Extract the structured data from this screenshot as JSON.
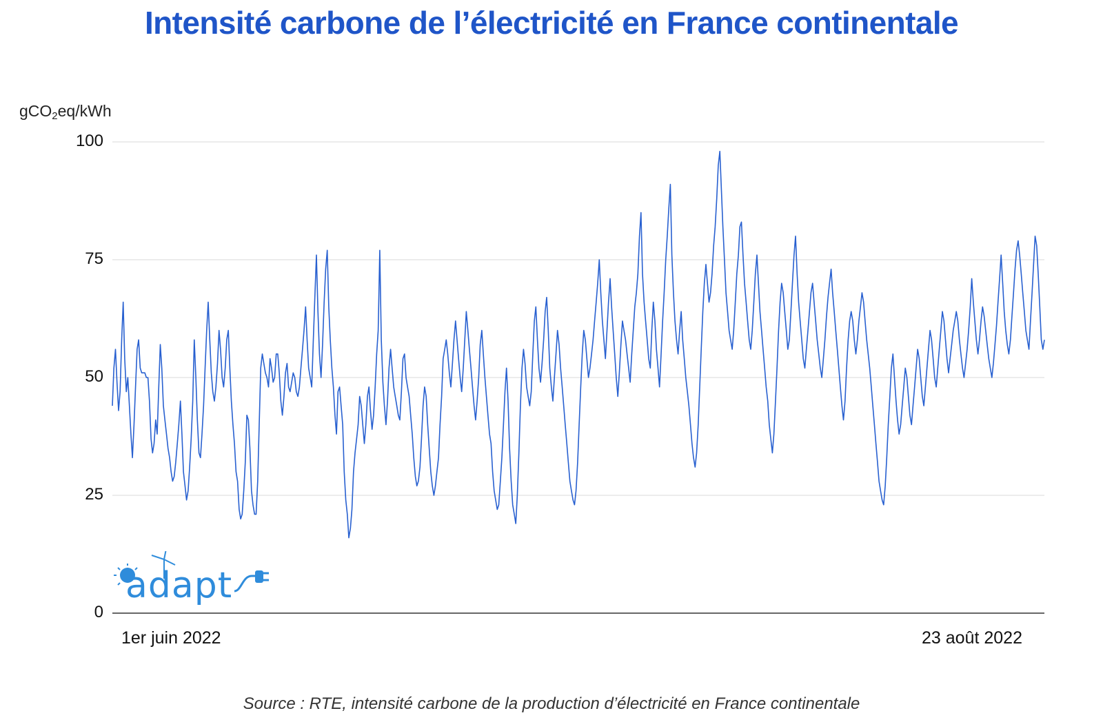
{
  "title_text": "Intensité carbone de l’électricité en France continentale",
  "unit": {
    "main": "gCO",
    "sub": "2",
    "tail": "eq/kWh"
  },
  "source": "Source : RTE, intensité carbone de la production d’électricité en France continentale",
  "logo": {
    "text": "adapt",
    "icons": [
      "sun-icon",
      "wind-turbine-icon",
      "plug-icon"
    ]
  },
  "colors": {
    "title": "#1f55c8",
    "line": "#2860d0",
    "grid": "#d9d9d9",
    "axis": "#333333",
    "logo": "#2f8cdb"
  },
  "chart_data": {
    "type": "line",
    "title": "Intensité carbone de l’électricité en France continentale",
    "ylabel": "gCO2eq/kWh",
    "xlabel": "",
    "ylim": [
      0,
      100
    ],
    "yticks": [
      0,
      25,
      50,
      75,
      100
    ],
    "xticks": [
      "1er juin 2022",
      "23 août 2022"
    ],
    "x_start": "2022-06-01",
    "x_end": "2022-08-23",
    "grid": true,
    "series": [
      {
        "values": [
          44,
          52,
          56,
          49,
          43,
          47,
          58,
          66,
          54,
          47,
          50,
          44,
          38,
          33,
          40,
          48,
          56,
          58,
          52,
          51,
          51,
          51,
          50,
          50,
          45,
          37,
          34,
          36,
          41,
          38,
          48,
          57,
          52,
          44,
          41,
          38,
          35,
          33,
          30,
          28,
          29,
          32,
          36,
          40,
          45,
          38,
          30,
          27,
          24,
          26,
          31,
          37,
          45,
          58,
          50,
          41,
          34,
          33,
          38,
          44,
          52,
          60,
          66,
          58,
          51,
          47,
          45,
          48,
          53,
          60,
          56,
          50,
          48,
          52,
          58,
          60,
          52,
          45,
          40,
          36,
          30,
          28,
          22,
          20,
          21,
          26,
          32,
          42,
          41,
          35,
          26,
          23,
          21,
          21,
          28,
          40,
          52,
          55,
          53,
          51,
          50,
          48,
          54,
          52,
          49,
          50,
          55,
          55,
          51,
          45,
          42,
          46,
          51,
          53,
          48,
          47,
          49,
          51,
          50,
          47,
          46,
          48,
          52,
          56,
          60,
          65,
          58,
          52,
          50,
          48,
          58,
          67,
          76,
          64,
          55,
          50,
          57,
          66,
          73,
          77,
          65,
          58,
          52,
          48,
          42,
          38,
          47,
          48,
          44,
          40,
          30,
          24,
          21,
          16,
          18,
          22,
          30,
          34,
          37,
          40,
          46,
          44,
          40,
          36,
          40,
          46,
          48,
          43,
          39,
          42,
          48,
          55,
          60,
          77,
          58,
          49,
          44,
          40,
          45,
          52,
          56,
          52,
          48,
          46,
          44,
          42,
          41,
          47,
          54,
          55,
          50,
          48,
          46,
          42,
          38,
          33,
          29,
          27,
          28,
          31,
          37,
          44,
          48,
          46,
          40,
          35,
          30,
          27,
          25,
          27,
          30,
          33,
          40,
          46,
          54,
          56,
          58,
          55,
          51,
          48,
          53,
          58,
          62,
          58,
          54,
          50,
          47,
          52,
          58,
          64,
          60,
          56,
          52,
          48,
          44,
          41,
          45,
          50,
          57,
          60,
          55,
          50,
          46,
          42,
          38,
          36,
          30,
          26,
          24,
          22,
          23,
          28,
          33,
          40,
          47,
          52,
          45,
          35,
          28,
          23,
          21,
          19,
          25,
          34,
          44,
          52,
          56,
          53,
          48,
          46,
          44,
          47,
          55,
          62,
          65,
          58,
          52,
          49,
          53,
          58,
          64,
          67,
          60,
          52,
          48,
          45,
          50,
          55,
          60,
          57,
          52,
          48,
          44,
          40,
          36,
          32,
          28,
          26,
          24,
          23,
          26,
          32,
          40,
          48,
          55,
          60,
          58,
          54,
          50,
          52,
          55,
          58,
          62,
          66,
          70,
          75,
          68,
          62,
          58,
          54,
          60,
          66,
          71,
          65,
          60,
          55,
          50,
          46,
          51,
          57,
          62,
          60,
          58,
          55,
          52,
          49,
          55,
          60,
          65,
          68,
          72,
          80,
          85,
          72,
          66,
          62,
          58,
          54,
          52,
          60,
          66,
          62,
          56,
          52,
          48,
          55,
          62,
          68,
          75,
          80,
          86,
          91,
          76,
          68,
          62,
          58,
          55,
          60,
          64,
          58,
          54,
          50,
          47,
          44,
          40,
          36,
          33,
          31,
          34,
          40,
          48,
          56,
          64,
          70,
          74,
          70,
          66,
          68,
          72,
          78,
          82,
          88,
          95,
          98,
          90,
          82,
          75,
          68,
          64,
          60,
          58,
          56,
          60,
          66,
          72,
          76,
          82,
          83,
          76,
          70,
          66,
          62,
          58,
          56,
          60,
          66,
          72,
          76,
          70,
          64,
          60,
          56,
          52,
          48,
          45,
          40,
          37,
          34,
          38,
          45,
          52,
          60,
          66,
          70,
          68,
          64,
          60,
          56,
          58,
          64,
          70,
          76,
          80,
          72,
          66,
          62,
          58,
          54,
          52,
          56,
          60,
          64,
          68,
          70,
          66,
          62,
          58,
          55,
          52,
          50,
          54,
          58,
          63,
          67,
          70,
          73,
          68,
          64,
          60,
          56,
          52,
          48,
          44,
          41,
          45,
          52,
          58,
          62,
          64,
          62,
          58,
          55,
          58,
          62,
          65,
          68,
          66,
          62,
          58,
          55,
          52,
          48,
          44,
          40,
          36,
          32,
          28,
          26,
          24,
          23,
          27,
          33,
          40,
          46,
          52,
          55,
          50,
          45,
          41,
          38,
          40,
          44,
          48,
          52,
          50,
          46,
          42,
          40,
          44,
          48,
          52,
          56,
          54,
          50,
          46,
          44,
          48,
          52,
          56,
          60,
          58,
          54,
          50,
          48,
          52,
          56,
          60,
          64,
          62,
          58,
          54,
          51,
          54,
          57,
          60,
          62,
          64,
          62,
          58,
          55,
          52,
          50,
          53,
          56,
          60,
          65,
          71,
          66,
          62,
          58,
          55,
          58,
          62,
          65,
          63,
          60,
          57,
          54,
          52,
          50,
          53,
          57,
          61,
          66,
          71,
          76,
          70,
          64,
          60,
          57,
          55,
          58,
          63,
          68,
          73,
          77,
          79,
          76,
          72,
          68,
          64,
          60,
          58,
          56,
          62,
          68,
          74,
          80,
          78,
          72,
          65,
          58,
          56,
          58
        ]
      }
    ]
  }
}
